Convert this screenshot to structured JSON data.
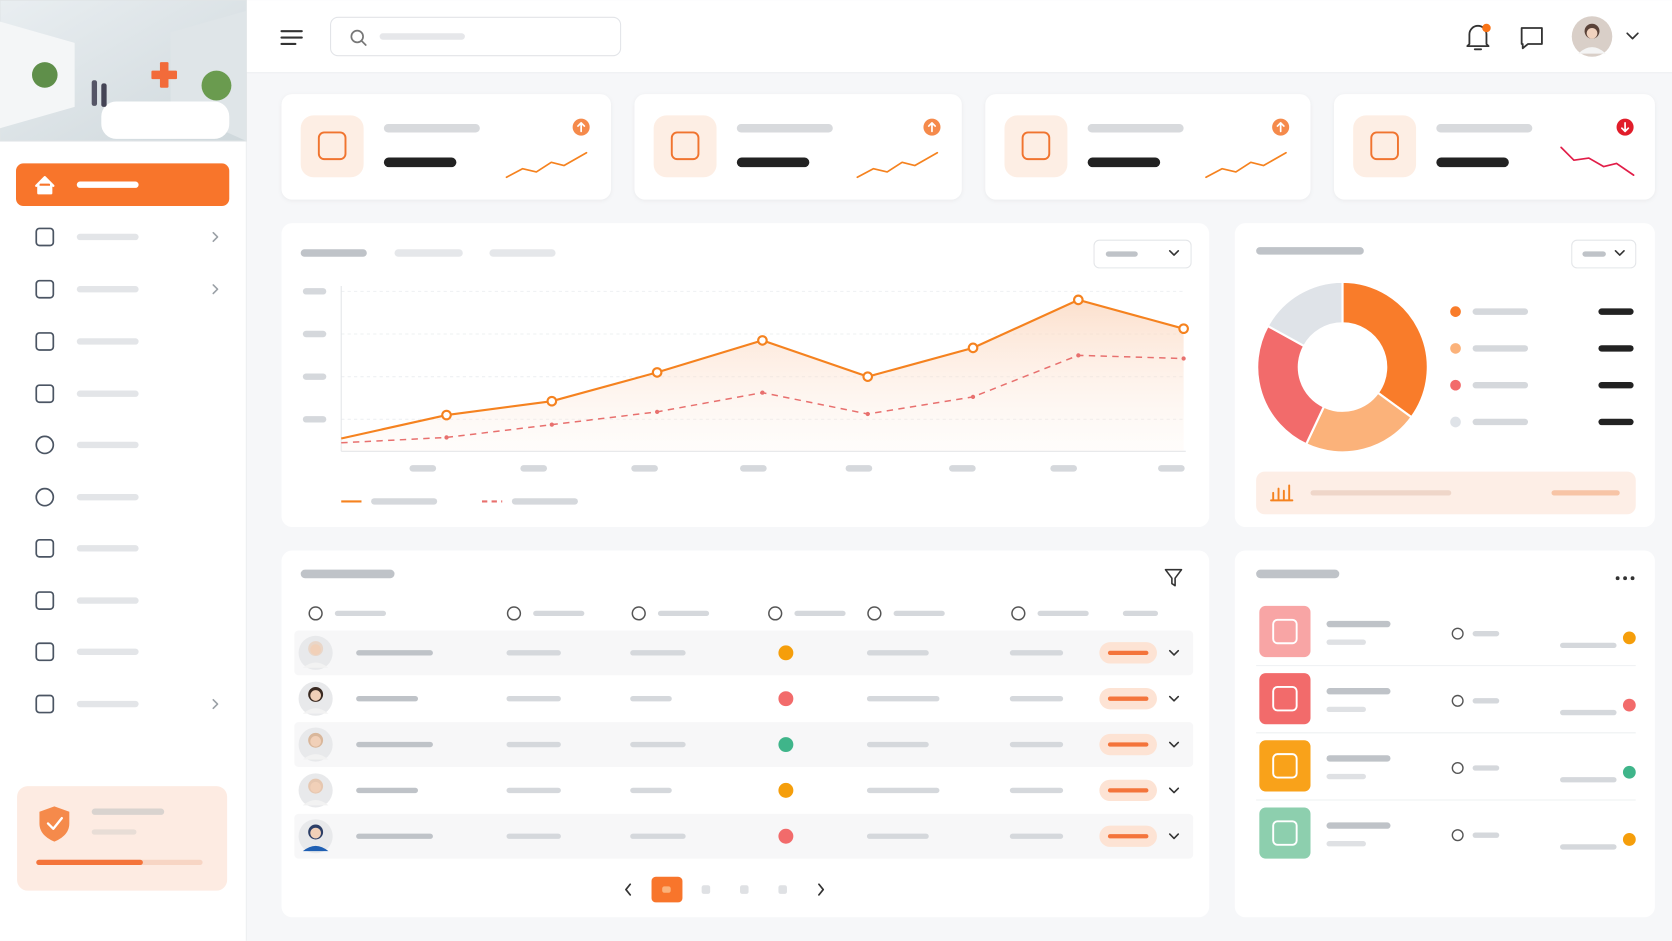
{
  "chart_data": [
    {
      "type": "line",
      "categories": [
        null,
        null,
        null,
        null,
        null,
        null,
        null,
        null,
        null
      ],
      "ylim": [
        0,
        150
      ],
      "yticks": [
        30,
        70,
        110,
        150
      ],
      "grid": true,
      "series": [
        {
          "color": "#f5821f",
          "style": "solid",
          "area": true,
          "values": [
            12,
            34,
            47,
            74,
            104,
            70,
            97,
            142,
            115
          ]
        },
        {
          "color": "#e8706e",
          "style": "dashed",
          "area": false,
          "values": [
            8,
            13,
            25,
            37,
            55,
            35,
            51,
            90,
            87
          ]
        }
      ]
    },
    {
      "type": "pie",
      "donut": true,
      "values": [
        35,
        22,
        26,
        17
      ],
      "colors": [
        "#f97c2a",
        "#fbb27a",
        "#f26b6b",
        "#dfe3e8"
      ]
    }
  ]
}
